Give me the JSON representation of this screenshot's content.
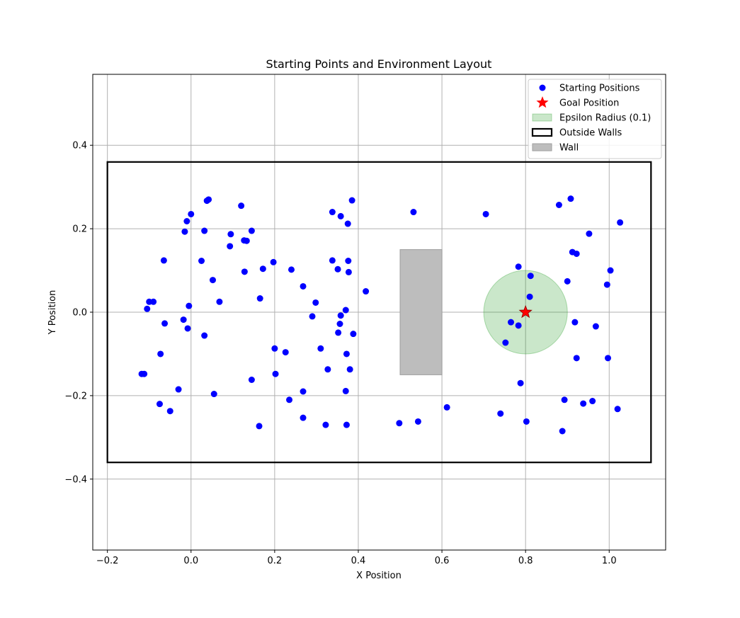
{
  "chart_data": {
    "type": "scatter",
    "title": "Starting Points and Environment Layout",
    "xlabel": "X Position",
    "ylabel": "Y Position",
    "xlim": [
      -0.235,
      1.135
    ],
    "ylim": [
      -0.57,
      0.57
    ],
    "xticks": [
      -0.2,
      0.0,
      0.2,
      0.4,
      0.6,
      0.8,
      1.0
    ],
    "xtick_labels": [
      "−0.2",
      "0.0",
      "0.2",
      "0.4",
      "0.6",
      "0.8",
      "1.0"
    ],
    "yticks": [
      -0.4,
      -0.2,
      0.0,
      0.2,
      0.4
    ],
    "ytick_labels": [
      "−0.4",
      "−0.2",
      "0.0",
      "0.2",
      "0.4"
    ],
    "grid": true,
    "legend_position": "top-right",
    "legend": [
      {
        "label": "Starting Positions",
        "kind": "point"
      },
      {
        "label": "Goal Position",
        "kind": "star"
      },
      {
        "label": "Epsilon Radius (0.1)",
        "kind": "patch-green"
      },
      {
        "label": "Outside Walls",
        "kind": "patch-outline"
      },
      {
        "label": "Wall",
        "kind": "patch-gray"
      }
    ],
    "colors": {
      "points": "#0000ff",
      "goal": "#ff0000",
      "goal_edge": "#8b0000",
      "epsilon_fill": "#2ca02c",
      "wall_fill": "#bdbdbd",
      "outer_wall": "#000000",
      "grid": "#b0b0b0"
    },
    "outside_walls": {
      "x0": -0.2,
      "x1": 1.1,
      "y0": -0.36,
      "y1": 0.36
    },
    "inner_wall": {
      "x0": 0.5,
      "x1": 0.6,
      "y0": -0.15,
      "y1": 0.15
    },
    "goal": {
      "x": 0.8,
      "y": 0.0
    },
    "epsilon_radius": 0.1,
    "points": [
      [
        0.0,
        0.235
      ],
      [
        -0.01,
        0.218
      ],
      [
        -0.015,
        0.193
      ],
      [
        0.038,
        0.267
      ],
      [
        0.042,
        0.27
      ],
      [
        0.12,
        0.255
      ],
      [
        0.032,
        0.195
      ],
      [
        0.095,
        0.187
      ],
      [
        0.145,
        0.195
      ],
      [
        0.127,
        0.172
      ],
      [
        0.133,
        0.171
      ],
      [
        0.093,
        0.158
      ],
      [
        -0.065,
        0.124
      ],
      [
        0.025,
        0.123
      ],
      [
        0.128,
        0.097
      ],
      [
        0.052,
        0.077
      ],
      [
        0.172,
        0.104
      ],
      [
        0.197,
        0.12
      ],
      [
        -0.1,
        0.025
      ],
      [
        -0.09,
        0.025
      ],
      [
        -0.105,
        0.008
      ],
      [
        0.068,
        0.025
      ],
      [
        -0.005,
        0.015
      ],
      [
        0.165,
        0.033
      ],
      [
        -0.063,
        -0.027
      ],
      [
        -0.018,
        -0.018
      ],
      [
        -0.008,
        -0.039
      ],
      [
        0.032,
        -0.056
      ],
      [
        -0.073,
        -0.1
      ],
      [
        -0.118,
        -0.148
      ],
      [
        -0.112,
        -0.148
      ],
      [
        -0.03,
        -0.185
      ],
      [
        0.055,
        -0.196
      ],
      [
        0.145,
        -0.162
      ],
      [
        -0.075,
        -0.22
      ],
      [
        -0.05,
        -0.237
      ],
      [
        0.163,
        -0.273
      ],
      [
        0.2,
        -0.087
      ],
      [
        0.202,
        -0.148
      ],
      [
        0.226,
        -0.096
      ],
      [
        0.235,
        -0.21
      ],
      [
        0.268,
        -0.19
      ],
      [
        0.268,
        -0.253
      ],
      [
        0.24,
        0.102
      ],
      [
        0.268,
        0.062
      ],
      [
        0.298,
        0.023
      ],
      [
        0.29,
        -0.01
      ],
      [
        0.31,
        -0.087
      ],
      [
        0.327,
        -0.137
      ],
      [
        0.322,
        -0.27
      ],
      [
        0.338,
        0.24
      ],
      [
        0.358,
        0.23
      ],
      [
        0.385,
        0.268
      ],
      [
        0.375,
        0.212
      ],
      [
        0.338,
        0.124
      ],
      [
        0.376,
        0.123
      ],
      [
        0.351,
        0.103
      ],
      [
        0.377,
        0.096
      ],
      [
        0.37,
        0.005
      ],
      [
        0.358,
        -0.008
      ],
      [
        0.356,
        -0.028
      ],
      [
        0.352,
        -0.049
      ],
      [
        0.388,
        -0.052
      ],
      [
        0.372,
        -0.1
      ],
      [
        0.38,
        -0.137
      ],
      [
        0.37,
        -0.189
      ],
      [
        0.372,
        -0.27
      ],
      [
        0.418,
        0.05
      ],
      [
        0.532,
        0.24
      ],
      [
        0.498,
        -0.266
      ],
      [
        0.543,
        -0.262
      ],
      [
        0.612,
        -0.228
      ],
      [
        0.705,
        0.235
      ],
      [
        0.74,
        -0.243
      ],
      [
        0.783,
        0.109
      ],
      [
        0.812,
        0.087
      ],
      [
        0.81,
        0.037
      ],
      [
        0.765,
        -0.024
      ],
      [
        0.783,
        -0.032
      ],
      [
        0.752,
        -0.073
      ],
      [
        0.788,
        -0.17
      ],
      [
        0.802,
        -0.262
      ],
      [
        0.88,
        0.257
      ],
      [
        0.908,
        0.272
      ],
      [
        0.952,
        0.188
      ],
      [
        0.912,
        0.144
      ],
      [
        0.922,
        0.14
      ],
      [
        0.9,
        0.074
      ],
      [
        1.026,
        0.215
      ],
      [
        1.003,
        0.1
      ],
      [
        0.995,
        0.066
      ],
      [
        0.918,
        -0.024
      ],
      [
        0.968,
        -0.034
      ],
      [
        0.922,
        -0.11
      ],
      [
        0.997,
        -0.11
      ],
      [
        0.893,
        -0.21
      ],
      [
        0.96,
        -0.213
      ],
      [
        0.938,
        -0.219
      ],
      [
        0.888,
        -0.285
      ],
      [
        1.02,
        -0.232
      ]
    ]
  }
}
